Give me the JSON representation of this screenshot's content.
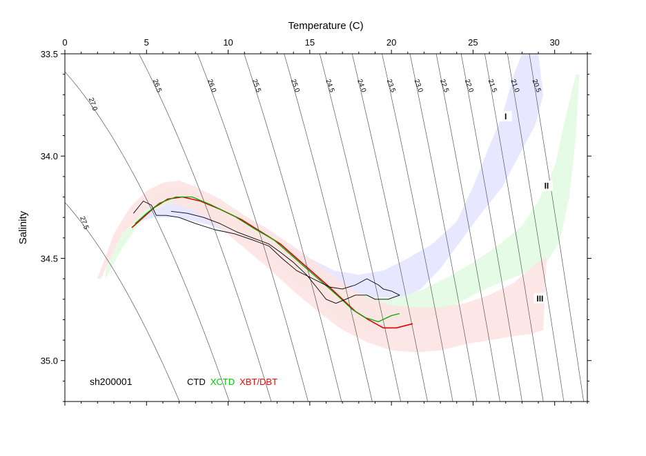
{
  "chart_data": {
    "type": "line",
    "title": "",
    "station_id": "sh200001",
    "xlabel": "Temperature (C)",
    "ylabel": "Salinity",
    "xlim": [
      0,
      32
    ],
    "ylim": [
      35.2,
      33.5
    ],
    "x_ticks": [
      0,
      5,
      10,
      15,
      20,
      25,
      30
    ],
    "x_tick_labels": [
      "0",
      "5",
      "10",
      "15",
      "20",
      "25",
      "30"
    ],
    "y_ticks": [
      33.5,
      34.0,
      34.5,
      35.0
    ],
    "y_tick_labels": [
      "33.5",
      "34.0",
      "34.5",
      "35.0"
    ],
    "density_contours": {
      "levels": [
        "27.5",
        "27.0",
        "26.5",
        "26.0",
        "25.5",
        "25.0",
        "24.5",
        "24.0",
        "23.5",
        "23.0",
        "22.5",
        "22.0",
        "21.5",
        "21.0",
        "20.5"
      ],
      "values": [
        27.5,
        27.0,
        26.5,
        26.0,
        25.5,
        25.0,
        24.5,
        24.0,
        23.5,
        23.0,
        22.5,
        22.0,
        21.5,
        21.0,
        20.5
      ],
      "color": "#555555"
    },
    "water_mass_regions": [
      {
        "label": "I",
        "color": "#e4e4ff",
        "upper": [
          [
            4.5,
            34.26
          ],
          [
            6,
            34.2
          ],
          [
            7.5,
            34.21
          ],
          [
            9,
            34.25
          ],
          [
            11,
            34.32
          ],
          [
            13,
            34.41
          ],
          [
            15,
            34.5
          ],
          [
            16.5,
            34.56
          ],
          [
            18,
            34.58
          ],
          [
            19.5,
            34.56
          ],
          [
            21,
            34.5
          ],
          [
            22.5,
            34.43
          ],
          [
            24,
            34.32
          ],
          [
            25,
            34.15
          ],
          [
            26,
            33.95
          ],
          [
            26.8,
            33.8
          ],
          [
            27.5,
            33.6
          ],
          [
            28,
            33.5
          ]
        ],
        "lower": [
          [
            29,
            33.5
          ],
          [
            29.3,
            33.7
          ],
          [
            28.8,
            33.85
          ],
          [
            27.8,
            34.0
          ],
          [
            26.8,
            34.15
          ],
          [
            25.5,
            34.28
          ],
          [
            24.2,
            34.42
          ],
          [
            23,
            34.55
          ],
          [
            21.8,
            34.65
          ],
          [
            20.5,
            34.7
          ],
          [
            19,
            34.72
          ],
          [
            17.5,
            34.7
          ],
          [
            16,
            34.65
          ],
          [
            14.5,
            34.56
          ],
          [
            13,
            34.49
          ],
          [
            11,
            34.41
          ],
          [
            9,
            34.34
          ],
          [
            7,
            34.3
          ],
          [
            5.5,
            34.3
          ],
          [
            4.5,
            34.32
          ]
        ]
      },
      {
        "label": "II",
        "color": "#e2fbe2",
        "upper": [
          [
            2.5,
            34.55
          ],
          [
            3.5,
            34.38
          ],
          [
            4.5,
            34.27
          ],
          [
            5.5,
            34.19
          ],
          [
            6.5,
            34.15
          ],
          [
            7.5,
            34.16
          ],
          [
            8.5,
            34.2
          ],
          [
            10,
            34.27
          ],
          [
            11.5,
            34.35
          ],
          [
            13,
            34.43
          ],
          [
            14.5,
            34.52
          ],
          [
            16,
            34.6
          ],
          [
            17.5,
            34.66
          ],
          [
            19,
            34.69
          ],
          [
            20.5,
            34.69
          ],
          [
            22,
            34.65
          ],
          [
            23.5,
            34.59
          ],
          [
            25,
            34.52
          ],
          [
            26.5,
            34.44
          ],
          [
            28,
            34.34
          ],
          [
            29,
            34.22
          ],
          [
            30,
            34.05
          ],
          [
            30.7,
            33.8
          ],
          [
            31.3,
            33.6
          ]
        ],
        "lower": [
          [
            31.5,
            33.6
          ],
          [
            31.3,
            33.9
          ],
          [
            30.9,
            34.2
          ],
          [
            30.3,
            34.42
          ],
          [
            29.5,
            34.52
          ],
          [
            28.5,
            34.56
          ],
          [
            27.3,
            34.6
          ],
          [
            26,
            34.64
          ],
          [
            24.5,
            34.7
          ],
          [
            23,
            34.77
          ],
          [
            21.5,
            34.83
          ],
          [
            20,
            34.86
          ],
          [
            18.5,
            34.86
          ],
          [
            17,
            34.81
          ],
          [
            15.5,
            34.71
          ],
          [
            14,
            34.6
          ],
          [
            12.5,
            34.49
          ],
          [
            11,
            34.4
          ],
          [
            9.5,
            34.31
          ],
          [
            8,
            34.25
          ],
          [
            6.5,
            34.23
          ],
          [
            5,
            34.28
          ],
          [
            3.5,
            34.45
          ],
          [
            2.5,
            34.6
          ]
        ]
      },
      {
        "label": "III",
        "color": "#fde3e3",
        "upper": [
          [
            2,
            34.6
          ],
          [
            3,
            34.38
          ],
          [
            4,
            34.25
          ],
          [
            5,
            34.17
          ],
          [
            6,
            34.13
          ],
          [
            7,
            34.12
          ],
          [
            8,
            34.15
          ],
          [
            9.5,
            34.21
          ],
          [
            11,
            34.29
          ],
          [
            12.5,
            34.36
          ],
          [
            14,
            34.44
          ],
          [
            15.5,
            34.53
          ],
          [
            17,
            34.62
          ],
          [
            18.5,
            34.69
          ],
          [
            20,
            34.73
          ],
          [
            21.5,
            34.74
          ],
          [
            23,
            34.74
          ],
          [
            24.5,
            34.72
          ],
          [
            26,
            34.68
          ],
          [
            27.5,
            34.62
          ],
          [
            28.5,
            34.55
          ],
          [
            29.3,
            34.5
          ]
        ],
        "lower": [
          [
            29.5,
            34.5
          ],
          [
            29.3,
            34.85
          ],
          [
            28.5,
            34.87
          ],
          [
            27.5,
            34.88
          ],
          [
            26,
            34.9
          ],
          [
            24.5,
            34.92
          ],
          [
            23,
            34.95
          ],
          [
            21.5,
            34.96
          ],
          [
            20,
            34.95
          ],
          [
            18.5,
            34.91
          ],
          [
            17,
            34.85
          ],
          [
            15.5,
            34.76
          ],
          [
            14,
            34.66
          ],
          [
            12.5,
            34.55
          ],
          [
            11,
            34.45
          ],
          [
            9.5,
            34.35
          ],
          [
            8,
            34.27
          ],
          [
            6.5,
            34.23
          ],
          [
            5,
            34.26
          ],
          [
            3.5,
            34.38
          ],
          [
            2.2,
            34.6
          ]
        ]
      }
    ],
    "region_labels": [
      {
        "text": "I",
        "x": 27.0,
        "y": 33.81
      },
      {
        "text": "II",
        "x": 29.5,
        "y": 34.15
      },
      {
        "text": "III",
        "x": 29.1,
        "y": 34.7
      }
    ],
    "legend": {
      "entries": [
        {
          "name": "CTD",
          "color": "#000000"
        },
        {
          "name": "XCTD",
          "color": "#00cc00"
        },
        {
          "name": "XBT/DBT",
          "color": "#ff0000"
        }
      ],
      "placement": "bottom-left"
    },
    "series": [
      {
        "name": "XBT/DBT",
        "color": "#dd0000",
        "points": [
          [
            4.1,
            34.35
          ],
          [
            4.8,
            34.3
          ],
          [
            5.5,
            34.25
          ],
          [
            6.3,
            34.21
          ],
          [
            7.2,
            34.2
          ],
          [
            8.3,
            34.22
          ],
          [
            9.5,
            34.26
          ],
          [
            10.8,
            34.31
          ],
          [
            12,
            34.37
          ],
          [
            13.2,
            34.43
          ],
          [
            14.2,
            34.5
          ],
          [
            15.2,
            34.57
          ],
          [
            16.2,
            34.64
          ],
          [
            17,
            34.7
          ],
          [
            17.8,
            34.76
          ],
          [
            18.6,
            34.8
          ],
          [
            19.5,
            34.84
          ],
          [
            20.3,
            34.84
          ],
          [
            21.3,
            34.82
          ]
        ]
      },
      {
        "name": "XCTD",
        "color": "#00aa00",
        "points": [
          [
            4.3,
            34.33
          ],
          [
            5,
            34.28
          ],
          [
            5.8,
            34.23
          ],
          [
            6.8,
            34.2
          ],
          [
            7.8,
            34.2
          ],
          [
            9,
            34.24
          ],
          [
            10.3,
            34.29
          ],
          [
            11.5,
            34.35
          ],
          [
            12.8,
            34.41
          ],
          [
            13.8,
            34.48
          ],
          [
            14.8,
            34.55
          ],
          [
            15.8,
            34.62
          ],
          [
            16.8,
            34.69
          ],
          [
            17.6,
            34.75
          ],
          [
            18.4,
            34.79
          ],
          [
            19.2,
            34.81
          ],
          [
            20,
            34.78
          ],
          [
            20.5,
            34.77
          ]
        ]
      },
      {
        "name": "CTD",
        "color": "#000000",
        "points": [
          [
            4.2,
            34.28
          ],
          [
            4.8,
            34.22
          ],
          [
            5.3,
            34.24
          ],
          [
            5.6,
            34.29
          ],
          [
            6.2,
            34.29
          ],
          [
            7,
            34.3
          ],
          [
            8,
            34.33
          ],
          [
            9.2,
            34.36
          ],
          [
            10.4,
            34.38
          ],
          [
            11.5,
            34.41
          ],
          [
            12.5,
            34.44
          ],
          [
            13.3,
            34.5
          ],
          [
            14.2,
            34.56
          ],
          [
            15.2,
            34.6
          ],
          [
            16.2,
            34.64
          ],
          [
            17,
            34.65
          ],
          [
            17.8,
            34.63
          ],
          [
            18.5,
            34.6
          ],
          [
            19.2,
            34.63
          ],
          [
            19.5,
            34.65
          ],
          [
            20,
            34.66
          ],
          [
            20.5,
            34.68
          ],
          [
            19.8,
            34.7
          ],
          [
            19,
            34.7
          ],
          [
            18.5,
            34.68
          ],
          [
            17.8,
            34.68
          ],
          [
            17.2,
            34.7
          ],
          [
            16.6,
            34.72
          ],
          [
            16,
            34.7
          ],
          [
            15.5,
            34.65
          ],
          [
            14.8,
            34.58
          ],
          [
            14,
            34.52
          ],
          [
            13.2,
            34.47
          ],
          [
            12.5,
            34.43
          ],
          [
            11.5,
            34.4
          ],
          [
            10.5,
            34.37
          ],
          [
            9.5,
            34.33
          ],
          [
            8.5,
            34.3
          ],
          [
            7.5,
            34.28
          ],
          [
            6.5,
            34.27
          ]
        ]
      }
    ],
    "grid": false
  }
}
